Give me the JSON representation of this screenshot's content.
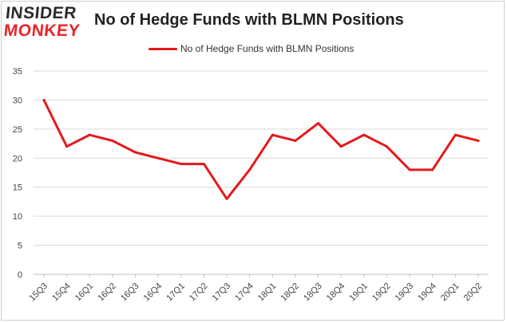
{
  "logo": {
    "line1": "INSIDER",
    "line2": "MONKEY"
  },
  "colors": {
    "series": "#e31a1c",
    "grid": "#d9d9d9",
    "axis": "#bfbfbf",
    "logo_red": "#e8262a"
  },
  "chart_data": {
    "type": "line",
    "title": "No of Hedge Funds with BLMN Positions",
    "legend": "top-center",
    "grid": true,
    "xlabel": "",
    "ylabel": "",
    "ylim": [
      0,
      35
    ],
    "yticks": [
      0,
      5,
      10,
      15,
      20,
      25,
      30,
      35
    ],
    "categories": [
      "15Q3",
      "15Q4",
      "16Q1",
      "16Q2",
      "16Q3",
      "16Q4",
      "17Q1",
      "17Q2",
      "17Q3",
      "17Q4",
      "18Q1",
      "18Q2",
      "18Q3",
      "18Q4",
      "19Q1",
      "19Q2",
      "19Q3",
      "19Q4",
      "20Q1",
      "20Q2"
    ],
    "series": [
      {
        "name": "No of Hedge Funds with BLMN Positions",
        "values": [
          30,
          22,
          24,
          23,
          21,
          20,
          19,
          19,
          13,
          18,
          24,
          23,
          26,
          22,
          24,
          22,
          18,
          18,
          24,
          23
        ]
      }
    ]
  }
}
